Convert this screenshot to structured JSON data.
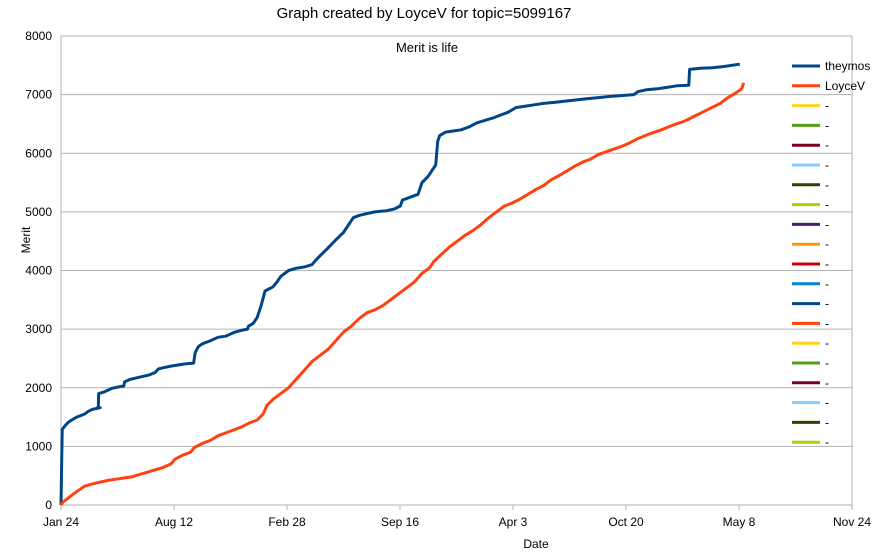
{
  "chart_data": {
    "type": "line",
    "title": "Graph created by LoyceV for topic=5099167",
    "subtitle": "Merit is life",
    "xlabel": "Date",
    "ylabel": "Merit",
    "ylim": [
      0,
      8000
    ],
    "yticks": [
      "0",
      "1000",
      "2000",
      "3000",
      "4000",
      "5000",
      "6000",
      "7000",
      "8000"
    ],
    "xticks": [
      "Jan 24",
      "Aug 12",
      "Feb 28",
      "Sep 16",
      "Apr 3",
      "Oct 20",
      "May 8",
      "Nov 24"
    ],
    "x_range": [
      0,
      2016
    ],
    "grid": "horizontal",
    "legend_position": "right",
    "series": [
      {
        "name": "theymos",
        "color": "#004586",
        "points": [
          [
            0,
            0
          ],
          [
            3,
            1290
          ],
          [
            10,
            1350
          ],
          [
            20,
            1420
          ],
          [
            40,
            1500
          ],
          [
            60,
            1550
          ],
          [
            70,
            1600
          ],
          [
            80,
            1630
          ],
          [
            100,
            1660
          ],
          [
            90,
            1650
          ],
          [
            95,
            1660
          ],
          [
            96,
            1900
          ],
          [
            110,
            1930
          ],
          [
            120,
            1960
          ],
          [
            130,
            1990
          ],
          [
            150,
            2020
          ],
          [
            160,
            2030
          ],
          [
            162,
            2100
          ],
          [
            175,
            2140
          ],
          [
            200,
            2180
          ],
          [
            225,
            2220
          ],
          [
            240,
            2260
          ],
          [
            248,
            2320
          ],
          [
            260,
            2340
          ],
          [
            280,
            2370
          ],
          [
            300,
            2390
          ],
          [
            320,
            2410
          ],
          [
            338,
            2420
          ],
          [
            342,
            2600
          ],
          [
            350,
            2700
          ],
          [
            360,
            2750
          ],
          [
            380,
            2800
          ],
          [
            400,
            2860
          ],
          [
            420,
            2880
          ],
          [
            440,
            2940
          ],
          [
            460,
            2980
          ],
          [
            475,
            3000
          ],
          [
            478,
            3050
          ],
          [
            490,
            3100
          ],
          [
            500,
            3200
          ],
          [
            510,
            3400
          ],
          [
            520,
            3650
          ],
          [
            540,
            3720
          ],
          [
            550,
            3800
          ],
          [
            560,
            3900
          ],
          [
            580,
            4000
          ],
          [
            600,
            4040
          ],
          [
            620,
            4060
          ],
          [
            640,
            4100
          ],
          [
            650,
            4180
          ],
          [
            660,
            4250
          ],
          [
            680,
            4380
          ],
          [
            700,
            4520
          ],
          [
            720,
            4650
          ],
          [
            730,
            4750
          ],
          [
            745,
            4900
          ],
          [
            760,
            4940
          ],
          [
            780,
            4970
          ],
          [
            800,
            5000
          ],
          [
            830,
            5020
          ],
          [
            850,
            5050
          ],
          [
            865,
            5100
          ],
          [
            870,
            5200
          ],
          [
            890,
            5250
          ],
          [
            910,
            5300
          ],
          [
            920,
            5500
          ],
          [
            935,
            5600
          ],
          [
            945,
            5700
          ],
          [
            955,
            5800
          ],
          [
            960,
            6200
          ],
          [
            965,
            6300
          ],
          [
            980,
            6360
          ],
          [
            1000,
            6380
          ],
          [
            1020,
            6400
          ],
          [
            1040,
            6450
          ],
          [
            1060,
            6520
          ],
          [
            1080,
            6560
          ],
          [
            1100,
            6600
          ],
          [
            1120,
            6650
          ],
          [
            1140,
            6700
          ],
          [
            1160,
            6780
          ],
          [
            1180,
            6800
          ],
          [
            1200,
            6820
          ],
          [
            1230,
            6850
          ],
          [
            1260,
            6870
          ],
          [
            1300,
            6900
          ],
          [
            1340,
            6930
          ],
          [
            1370,
            6950
          ],
          [
            1400,
            6970
          ],
          [
            1440,
            6990
          ],
          [
            1460,
            7000
          ],
          [
            1470,
            7050
          ],
          [
            1490,
            7080
          ],
          [
            1520,
            7100
          ],
          [
            1540,
            7120
          ],
          [
            1570,
            7150
          ],
          [
            1600,
            7160
          ],
          [
            1602,
            7430
          ],
          [
            1630,
            7450
          ],
          [
            1660,
            7460
          ],
          [
            1690,
            7480
          ],
          [
            1710,
            7500
          ],
          [
            1730,
            7520
          ]
        ]
      },
      {
        "name": "LoyceV",
        "color": "#ff420e",
        "points": [
          [
            0,
            0
          ],
          [
            5,
            50
          ],
          [
            15,
            100
          ],
          [
            30,
            180
          ],
          [
            45,
            250
          ],
          [
            60,
            320
          ],
          [
            80,
            360
          ],
          [
            100,
            390
          ],
          [
            120,
            420
          ],
          [
            140,
            440
          ],
          [
            160,
            460
          ],
          [
            180,
            480
          ],
          [
            200,
            520
          ],
          [
            220,
            560
          ],
          [
            240,
            600
          ],
          [
            260,
            640
          ],
          [
            280,
            700
          ],
          [
            290,
            780
          ],
          [
            310,
            850
          ],
          [
            330,
            900
          ],
          [
            340,
            980
          ],
          [
            360,
            1050
          ],
          [
            380,
            1100
          ],
          [
            400,
            1180
          ],
          [
            420,
            1230
          ],
          [
            440,
            1280
          ],
          [
            460,
            1330
          ],
          [
            480,
            1400
          ],
          [
            500,
            1450
          ],
          [
            515,
            1550
          ],
          [
            525,
            1700
          ],
          [
            540,
            1800
          ],
          [
            560,
            1900
          ],
          [
            580,
            2000
          ],
          [
            600,
            2150
          ],
          [
            620,
            2300
          ],
          [
            640,
            2450
          ],
          [
            660,
            2550
          ],
          [
            680,
            2650
          ],
          [
            700,
            2800
          ],
          [
            720,
            2950
          ],
          [
            740,
            3050
          ],
          [
            760,
            3180
          ],
          [
            780,
            3280
          ],
          [
            800,
            3330
          ],
          [
            820,
            3400
          ],
          [
            840,
            3500
          ],
          [
            860,
            3600
          ],
          [
            880,
            3700
          ],
          [
            900,
            3800
          ],
          [
            920,
            3950
          ],
          [
            940,
            4050
          ],
          [
            950,
            4150
          ],
          [
            970,
            4280
          ],
          [
            990,
            4400
          ],
          [
            1010,
            4500
          ],
          [
            1030,
            4600
          ],
          [
            1050,
            4680
          ],
          [
            1070,
            4780
          ],
          [
            1090,
            4900
          ],
          [
            1110,
            5000
          ],
          [
            1130,
            5100
          ],
          [
            1150,
            5150
          ],
          [
            1170,
            5220
          ],
          [
            1190,
            5300
          ],
          [
            1210,
            5380
          ],
          [
            1230,
            5450
          ],
          [
            1250,
            5550
          ],
          [
            1270,
            5620
          ],
          [
            1290,
            5700
          ],
          [
            1310,
            5780
          ],
          [
            1330,
            5850
          ],
          [
            1350,
            5900
          ],
          [
            1370,
            5980
          ],
          [
            1400,
            6050
          ],
          [
            1430,
            6120
          ],
          [
            1450,
            6180
          ],
          [
            1470,
            6250
          ],
          [
            1500,
            6330
          ],
          [
            1530,
            6400
          ],
          [
            1560,
            6480
          ],
          [
            1590,
            6550
          ],
          [
            1620,
            6650
          ],
          [
            1650,
            6750
          ],
          [
            1680,
            6850
          ],
          [
            1700,
            6950
          ],
          [
            1720,
            7030
          ],
          [
            1735,
            7100
          ],
          [
            1740,
            7200
          ]
        ]
      },
      {
        "name": "-",
        "color": "#ffd320",
        "points": []
      },
      {
        "name": "-",
        "color": "#579d1c",
        "points": []
      },
      {
        "name": "-",
        "color": "#7e0021",
        "points": []
      },
      {
        "name": "-",
        "color": "#83caff",
        "points": []
      },
      {
        "name": "-",
        "color": "#314004",
        "points": []
      },
      {
        "name": "-",
        "color": "#aecf00",
        "points": []
      },
      {
        "name": "-",
        "color": "#4b1f6f",
        "points": []
      },
      {
        "name": "-",
        "color": "#ff950e",
        "points": []
      },
      {
        "name": "-",
        "color": "#c5000b",
        "points": []
      },
      {
        "name": "-",
        "color": "#0084d1",
        "points": []
      },
      {
        "name": "-",
        "color": "#004586",
        "points": []
      },
      {
        "name": "-",
        "color": "#ff420e",
        "points": []
      },
      {
        "name": "-",
        "color": "#ffd320",
        "points": []
      },
      {
        "name": "-",
        "color": "#579d1c",
        "points": []
      },
      {
        "name": "-",
        "color": "#7e0021",
        "points": []
      },
      {
        "name": "-",
        "color": "#83caff",
        "points": []
      },
      {
        "name": "-",
        "color": "#314004",
        "points": []
      },
      {
        "name": "-",
        "color": "#aecf00",
        "points": []
      }
    ]
  }
}
